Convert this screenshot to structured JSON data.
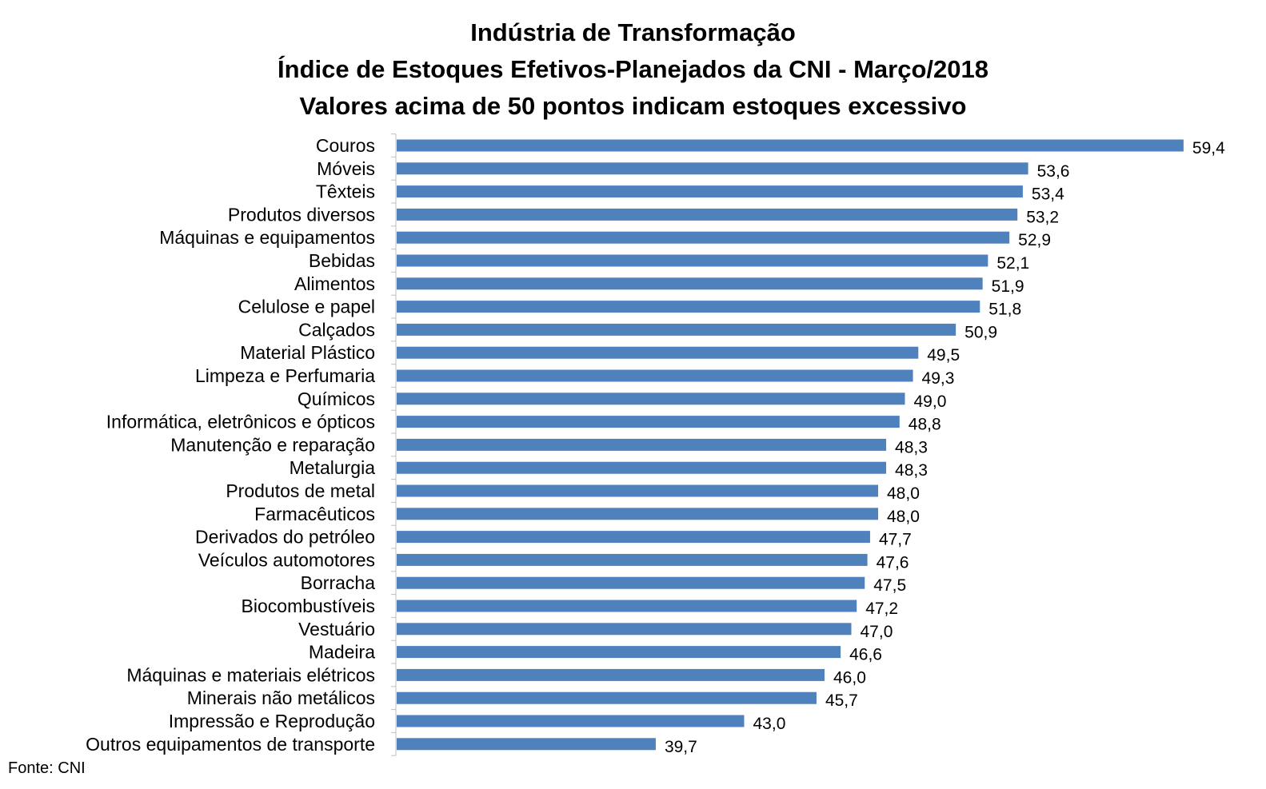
{
  "chart_data": {
    "type": "bar",
    "orientation": "horizontal",
    "title_lines": [
      "Indústria de Transformação",
      "Índice de Estoques Efetivos-Planejados da CNI - Março/2018",
      "Valores acima de 50 pontos indicam estoques excessivo"
    ],
    "categories": [
      "Couros",
      "Móveis",
      "Têxteis",
      "Produtos diversos",
      "Máquinas e equipamentos",
      "Bebidas",
      "Alimentos",
      "Celulose e papel",
      "Calçados",
      "Material Plástico",
      "Limpeza e Perfumaria",
      "Químicos",
      "Informática, eletrônicos e ópticos",
      "Manutenção e reparação",
      "Metalurgia",
      "Produtos de metal",
      "Farmacêuticos",
      "Derivados do petróleo",
      "Veículos automotores",
      "Borracha",
      "Biocombustíveis",
      "Vestuário",
      "Madeira",
      "Máquinas e materiais elétricos",
      "Minerais não metálicos",
      "Impressão e Reprodução",
      "Outros equipamentos de transporte"
    ],
    "values": [
      59.4,
      53.6,
      53.4,
      53.2,
      52.9,
      52.1,
      51.9,
      51.8,
      50.9,
      49.5,
      49.3,
      49.0,
      48.8,
      48.3,
      48.3,
      48.0,
      48.0,
      47.7,
      47.6,
      47.5,
      47.2,
      47.0,
      46.6,
      46.0,
      45.7,
      43.0,
      39.7
    ],
    "value_labels": [
      "59,4",
      "53,6",
      "53,4",
      "53,2",
      "52,9",
      "52,1",
      "51,9",
      "51,8",
      "50,9",
      "49,5",
      "49,3",
      "49,0",
      "48,8",
      "48,3",
      "48,3",
      "48,0",
      "48,0",
      "47,7",
      "47,6",
      "47,5",
      "47,2",
      "47,0",
      "46,6",
      "46,0",
      "45,7",
      "43,0",
      "39,7"
    ],
    "xlim": [
      30,
      60
    ],
    "bar_color": "#4f81bd",
    "grid": false,
    "legend": "none"
  },
  "source": "Fonte: CNI"
}
